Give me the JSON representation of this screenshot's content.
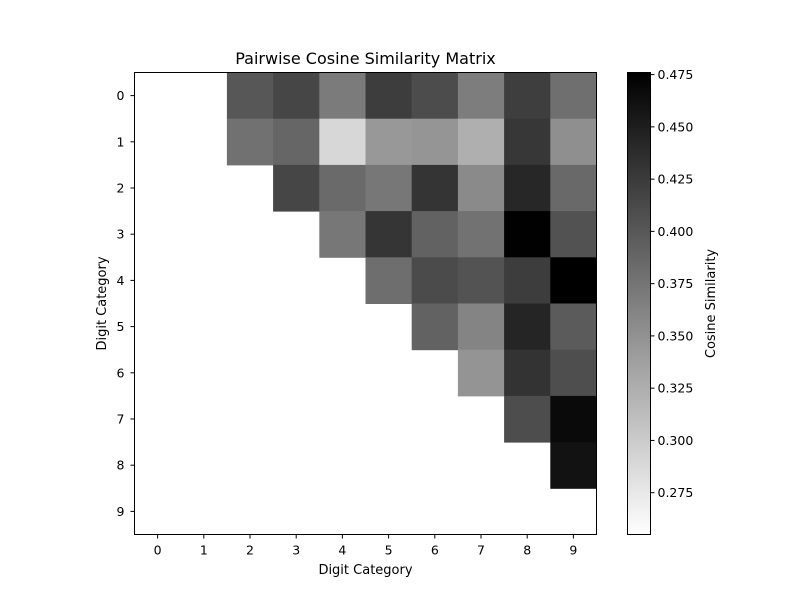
{
  "chart_data": {
    "type": "heatmap",
    "title": "Pairwise Cosine Similarity Matrix",
    "xlabel": "Digit Category",
    "ylabel": "Digit Category",
    "x_categories": [
      "0",
      "1",
      "2",
      "3",
      "4",
      "5",
      "6",
      "7",
      "8",
      "9"
    ],
    "y_categories": [
      "0",
      "1",
      "2",
      "3",
      "4",
      "5",
      "6",
      "7",
      "8",
      "9"
    ],
    "matrix_shape": "upper-triangle (i < j), other cells blank",
    "colormap": "Greys",
    "color_low": "#ffffff",
    "color_high": "#000000",
    "vmin": 0.255,
    "vmax": 0.476,
    "values": [
      [
        null,
        null,
        0.401,
        0.415,
        0.369,
        0.423,
        0.41,
        0.368,
        0.422,
        0.38
      ],
      [
        null,
        null,
        0.378,
        0.388,
        0.29,
        0.344,
        0.347,
        0.324,
        0.428,
        0.352
      ],
      [
        null,
        null,
        null,
        0.415,
        0.384,
        0.373,
        0.431,
        0.356,
        0.442,
        0.385
      ],
      [
        null,
        null,
        null,
        null,
        0.373,
        0.43,
        0.391,
        0.377,
        0.475,
        0.405
      ],
      [
        null,
        null,
        null,
        null,
        null,
        0.381,
        0.411,
        0.404,
        0.423,
        0.476
      ],
      [
        null,
        null,
        null,
        null,
        null,
        null,
        0.391,
        0.362,
        0.444,
        0.397
      ],
      [
        null,
        null,
        null,
        null,
        null,
        null,
        null,
        0.348,
        0.432,
        0.408
      ],
      [
        null,
        null,
        null,
        null,
        null,
        null,
        null,
        null,
        0.409,
        0.467
      ],
      [
        null,
        null,
        null,
        null,
        null,
        null,
        null,
        null,
        null,
        0.46
      ],
      [
        null,
        null,
        null,
        null,
        null,
        null,
        null,
        null,
        null,
        null
      ]
    ],
    "colorbar": {
      "label": "Cosine Similarity",
      "ticks": [
        "0.275",
        "0.300",
        "0.325",
        "0.350",
        "0.375",
        "0.400",
        "0.425",
        "0.450",
        "0.475"
      ]
    },
    "grid": false,
    "legend": "none"
  }
}
